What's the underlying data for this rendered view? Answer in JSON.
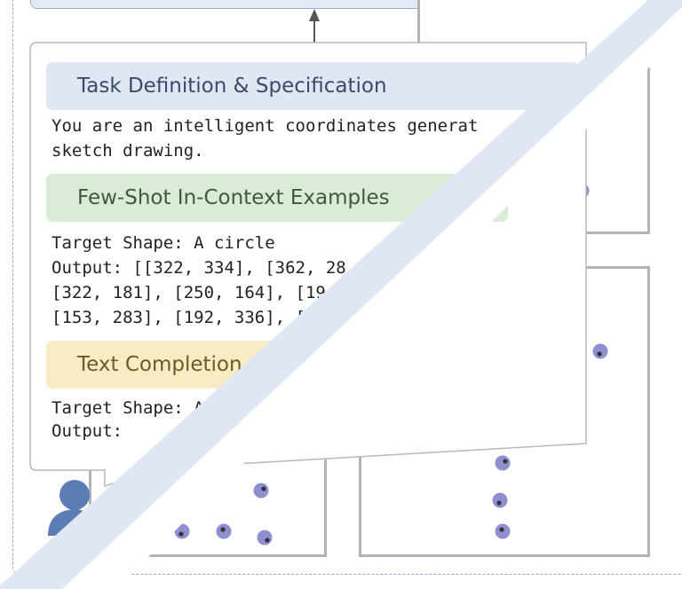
{
  "prompt": {
    "task_header": "Task Definition & Specification",
    "task_text_1": "You are an intelligent coordinates generat",
    "task_text_2": "sketch drawing.",
    "fewshot_header": "Few-Shot In-Context Examples",
    "fewshot_line_1": "Target Shape: A circle",
    "fewshot_line_2": "Output: [[322, 334], [362, 28",
    "fewshot_line_3": "[322, 181], [250, 164], [19",
    "fewshot_line_4": "[153, 283], [192, 336], [",
    "completion_header": "Text Completion",
    "completion_line_1": "Target Shape: A",
    "completion_line_2": "Output:"
  },
  "colors": {
    "task_header_bg": "#dfe6f4",
    "fewshot_header_bg": "#d9ecd6",
    "completion_header_bg": "#f8ecc4",
    "point_fill": "#8f8fd0",
    "marker": "#333333",
    "frame": "#8fa8d8",
    "panel_border": "#b3b3b3",
    "user_icon": "#5b7db5"
  },
  "icons": [
    "user-icon",
    "arrow-up-icon"
  ]
}
